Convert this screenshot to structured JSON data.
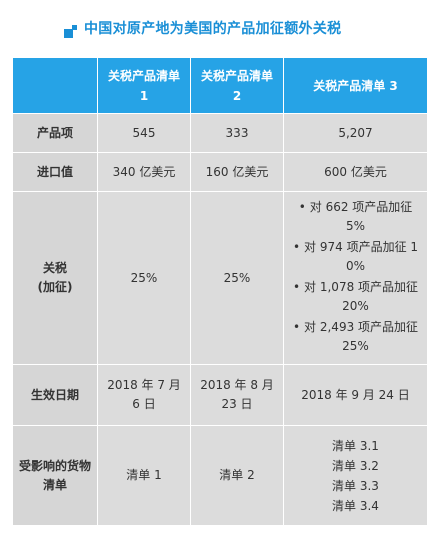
{
  "title": "中国对原产地为美国的产品加征额外关税",
  "columns": [
    "关税产品清单 1",
    "关税产品清单 2",
    "关税产品清单 3"
  ],
  "rows": {
    "products": {
      "label": "产品项",
      "values": [
        "545",
        "333",
        "5,207"
      ]
    },
    "import_value": {
      "label": "进口值",
      "values": [
        "340 亿美元",
        "160 亿美元",
        "600 亿美元"
      ]
    },
    "tariff": {
      "label": "关税\n(加征)",
      "values": [
        "25%",
        "25%"
      ],
      "list3_rates": [
        "对 662 项产品加征 5%",
        "对 974 项产品加征 10%",
        "对 1,078 项产品加征 20%",
        "对 2,493 项产品加征 25%"
      ]
    },
    "effective_date": {
      "label": "生效日期",
      "values": [
        "2018 年 7 月 6 日",
        "2018 年 8 月 23 日",
        "2018 年 9 月 24 日"
      ]
    },
    "affected_lists": {
      "label": "受影响的货物清单",
      "values": [
        "清单 1",
        "清单 2"
      ],
      "list3_items": [
        "清单 3.1",
        "清单 3.2",
        "清单 3.3",
        "清单 3.4"
      ]
    }
  }
}
